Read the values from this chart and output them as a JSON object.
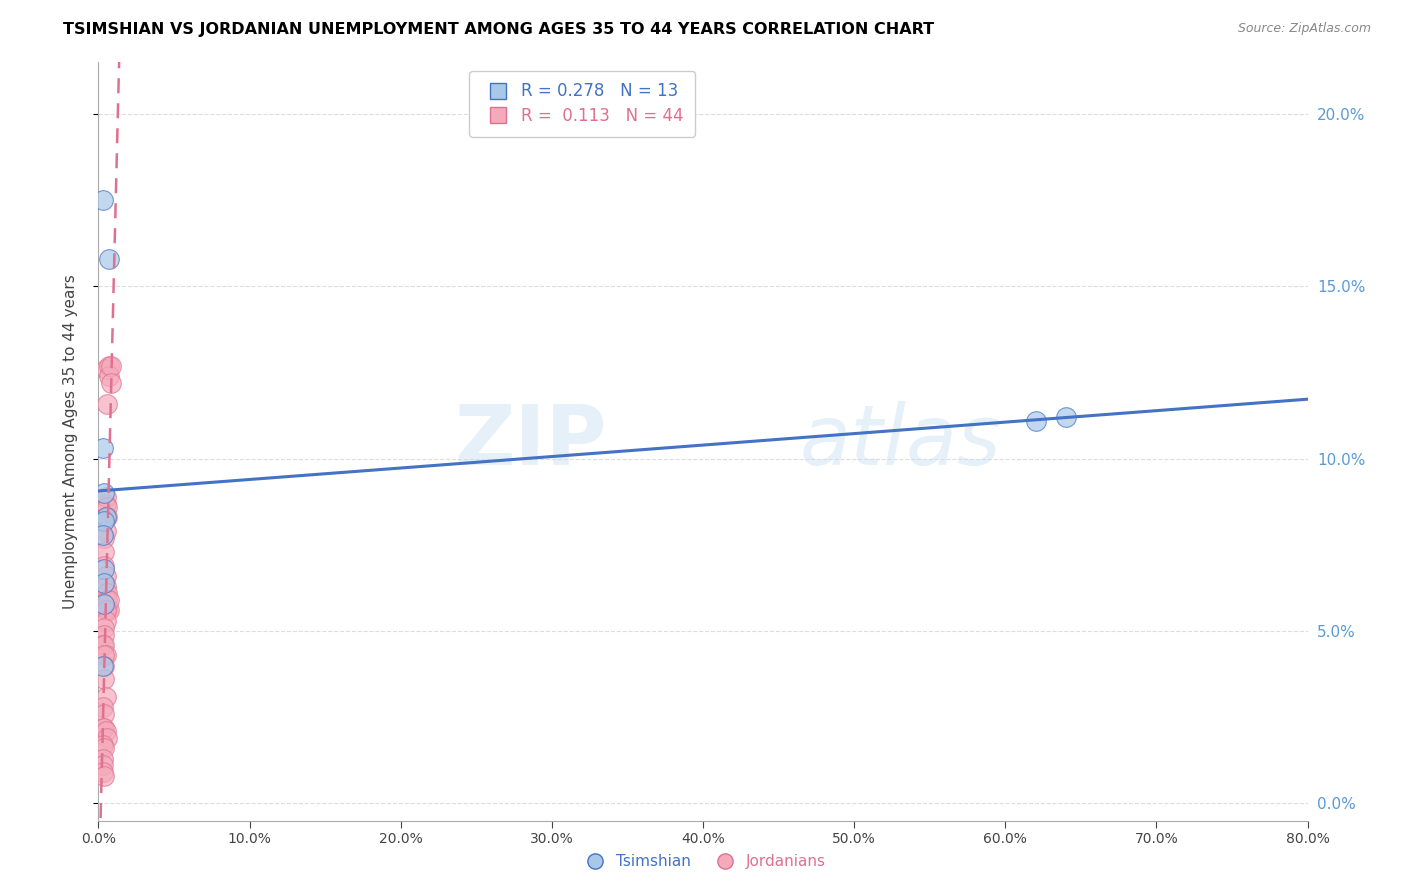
{
  "title": "TSIMSHIAN VS JORDANIAN UNEMPLOYMENT AMONG AGES 35 TO 44 YEARS CORRELATION CHART",
  "source": "Source: ZipAtlas.com",
  "ylabel": "Unemployment Among Ages 35 to 44 years",
  "xlim": [
    0.0,
    0.8
  ],
  "ylim": [
    -0.005,
    0.215
  ],
  "yticks": [
    0.0,
    0.05,
    0.1,
    0.15,
    0.2
  ],
  "xticks": [
    0.0,
    0.1,
    0.2,
    0.3,
    0.4,
    0.5,
    0.6,
    0.7,
    0.8
  ],
  "tsimshian_x": [
    0.003,
    0.007,
    0.003,
    0.004,
    0.005,
    0.004,
    0.003,
    0.004,
    0.004,
    0.003,
    0.62,
    0.64,
    0.004
  ],
  "tsimshian_y": [
    0.175,
    0.158,
    0.103,
    0.09,
    0.083,
    0.082,
    0.078,
    0.068,
    0.064,
    0.04,
    0.111,
    0.112,
    0.058
  ],
  "jordanian_x": [
    0.005,
    0.007,
    0.007,
    0.008,
    0.008,
    0.006,
    0.005,
    0.005,
    0.006,
    0.006,
    0.005,
    0.004,
    0.004,
    0.004,
    0.005,
    0.005,
    0.006,
    0.006,
    0.006,
    0.007,
    0.007,
    0.005,
    0.005,
    0.004,
    0.004,
    0.003,
    0.004,
    0.005,
    0.004,
    0.004,
    0.004,
    0.005,
    0.003,
    0.004,
    0.003,
    0.004,
    0.005,
    0.006,
    0.003,
    0.004,
    0.003,
    0.003,
    0.003,
    0.004
  ],
  "jordanian_y": [
    0.126,
    0.127,
    0.124,
    0.127,
    0.122,
    0.116,
    0.087,
    0.089,
    0.086,
    0.083,
    0.079,
    0.077,
    0.073,
    0.069,
    0.066,
    0.063,
    0.061,
    0.059,
    0.056,
    0.056,
    0.059,
    0.056,
    0.053,
    0.051,
    0.049,
    0.046,
    0.046,
    0.043,
    0.043,
    0.04,
    0.036,
    0.031,
    0.028,
    0.026,
    0.022,
    0.022,
    0.021,
    0.019,
    0.017,
    0.016,
    0.013,
    0.011,
    0.009,
    0.008
  ],
  "tsimshian_color": "#A8C8E8",
  "jordanian_color": "#F4AABB",
  "tsimshian_line_color": "#4472C4",
  "jordanian_line_color": "#E07090",
  "grid_color": "#DDDDDD",
  "axis_color": "#5B9BD5",
  "watermark_zip": "ZIP",
  "watermark_atlas": "atlas",
  "legend_R_tsimshian": "0.278",
  "legend_N_tsimshian": "13",
  "legend_R_jordanian": "0.113",
  "legend_N_jordanian": "44",
  "tsimshian_label": "Tsimshian",
  "jordanian_label": "Jordanians"
}
